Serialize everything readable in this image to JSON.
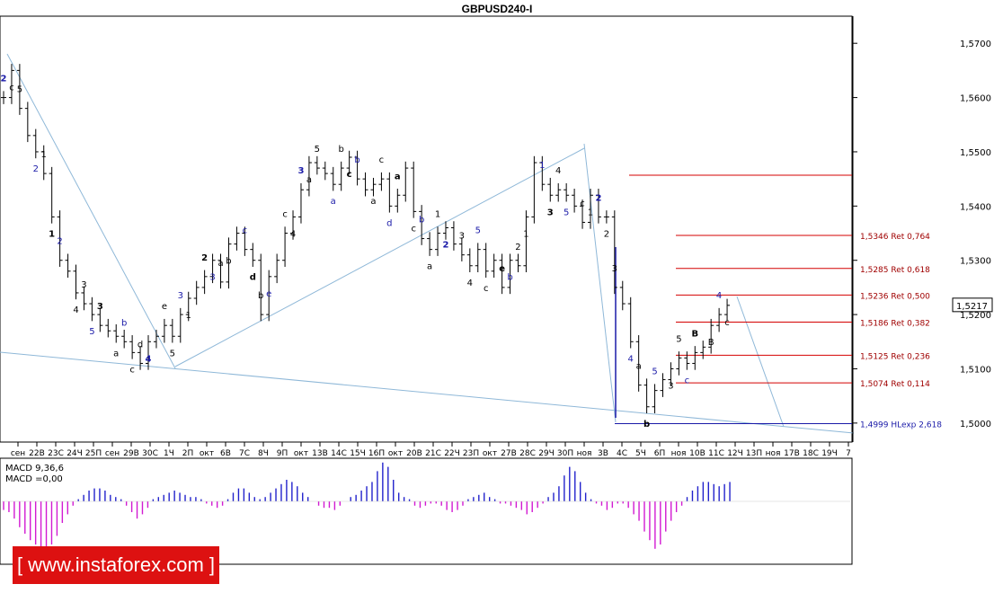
{
  "chart_data": {
    "type": "line",
    "title": "GBPUSD240-I",
    "price_axis": {
      "ticks": [
        "1,5700",
        "1,5600",
        "1,5500",
        "1,5400",
        "1,5300",
        "1,5200",
        "1,5100",
        "1,5000"
      ],
      "ylim": [
        1.4965,
        1.575
      ],
      "last_price": "1,5217"
    },
    "time_axis": [
      "сен",
      "22В",
      "23С",
      "24Ч",
      "25П",
      "сен",
      "29В",
      "30С",
      "1Ч",
      "2П",
      "окт",
      "6В",
      "7С",
      "8Ч",
      "9П",
      "окт",
      "13В",
      "14С",
      "15Ч",
      "16П",
      "окт",
      "20В",
      "21С",
      "22Ч",
      "23П",
      "окт",
      "27В",
      "28С",
      "29Ч",
      "30П",
      "ноя",
      "3В",
      "4С",
      "5Ч",
      "6П",
      "ноя",
      "10В",
      "11С",
      "12Ч",
      "13П",
      "ноя",
      "17В",
      "18С",
      "19Ч",
      "7"
    ],
    "series": [
      {
        "values": [
          1.56,
          1.565,
          1.558,
          1.553,
          1.55,
          1.546,
          1.538,
          1.53,
          1.528,
          1.524,
          1.522,
          1.52,
          1.518,
          1.517,
          1.516,
          1.515,
          1.513,
          1.511,
          1.515,
          1.516,
          1.518,
          1.516,
          1.52,
          1.523,
          1.525,
          1.527,
          1.53,
          1.526,
          1.533,
          1.535,
          1.532,
          1.53,
          1.52,
          1.527,
          1.53,
          1.535,
          1.538,
          1.543,
          1.548,
          1.547,
          1.546,
          1.544,
          1.547,
          1.549,
          1.545,
          1.543,
          1.544,
          1.545,
          1.54,
          1.542,
          1.547,
          1.539,
          1.534,
          1.532,
          1.535,
          1.536,
          1.533,
          1.531,
          1.529,
          1.532,
          1.528,
          1.53,
          1.525,
          1.53,
          1.529,
          1.538,
          1.548,
          1.544,
          1.542,
          1.543,
          1.542,
          1.54,
          1.537,
          1.542,
          1.538,
          1.538,
          1.525,
          1.522,
          1.515,
          1.507,
          1.503,
          1.506,
          1.508,
          1.51,
          1.512,
          1.511,
          1.513,
          1.514,
          1.518,
          1.52,
          1.5217
        ]
      }
    ],
    "wave_labels": [
      "2",
      "c",
      "5",
      "2",
      "1",
      "1",
      "2",
      "4",
      "3",
      "5",
      "3",
      "a",
      "b",
      "c",
      "d",
      "4",
      "e",
      "5",
      "3",
      "1",
      "2",
      "3",
      "a",
      "b",
      "c",
      "d",
      "b",
      "e",
      "c",
      "4",
      "3",
      "a",
      "5",
      "a",
      "b",
      "c",
      "b",
      "a",
      "c",
      "d",
      "a",
      "c",
      "b",
      "a",
      "1",
      "2",
      "3",
      "4",
      "5",
      "c",
      "e",
      "b",
      "2",
      "1",
      "1",
      "3",
      "4",
      "5",
      "c",
      "1",
      "2",
      "2",
      "3",
      "4",
      "a",
      "b",
      "5",
      "3",
      "5",
      "c",
      "B",
      "B",
      "4",
      "c"
    ],
    "fib_levels": [
      "1,5346 Ret 0,764",
      "1,5285 Ret 0,618",
      "1,5236 Ret 0,500",
      "1,5186 Ret 0,382",
      "1,5125 Ret 0,236",
      "1,5074 Ret 0,114",
      "1,4999 HLexp 2,618"
    ],
    "macd": {
      "label1": "MACD 9,36,6",
      "label2": "MACD =0,00",
      "values": [
        -4,
        -5,
        -8,
        -12,
        -15,
        -18,
        -20,
        -22,
        -22,
        -20,
        -16,
        -10,
        -6,
        -2,
        1,
        3,
        5,
        6,
        6,
        5,
        3,
        2,
        1,
        -2,
        -5,
        -8,
        -6,
        -3,
        1,
        2,
        3,
        4,
        5,
        4,
        3,
        2,
        2,
        1,
        -1,
        -2,
        -3,
        -2,
        1,
        4,
        6,
        6,
        4,
        2,
        1,
        2,
        4,
        6,
        8,
        10,
        9,
        7,
        4,
        2,
        0,
        -2,
        -3,
        -3,
        -4,
        -2,
        0,
        2,
        3,
        5,
        7,
        9,
        14,
        18,
        16,
        10,
        4,
        2,
        1,
        -2,
        -3,
        -2,
        -1,
        -1,
        -2,
        -4,
        -5,
        -4,
        -2,
        1,
        2,
        3,
        4,
        2,
        1,
        -1,
        -1,
        -2,
        -3,
        -4,
        -6,
        -5,
        -3,
        -1,
        2,
        4,
        7,
        12,
        16,
        14,
        9,
        4,
        1,
        -1,
        -2,
        -4,
        -3,
        -1,
        -1,
        -3,
        -6,
        -9,
        -14,
        -18,
        -22,
        -20,
        -14,
        -9,
        -5,
        -2,
        2,
        5,
        7,
        9,
        9,
        8,
        7,
        8,
        9
      ]
    },
    "watermark": "[ www.instaforex.com ]",
    "grid": false,
    "legend": "none",
    "colors": {
      "bars": "#000000",
      "wave_blue": "#1a1aa8",
      "fib_red": "#d40000",
      "trend": "#8fb8d8",
      "macd": "#7d2fd4"
    }
  }
}
